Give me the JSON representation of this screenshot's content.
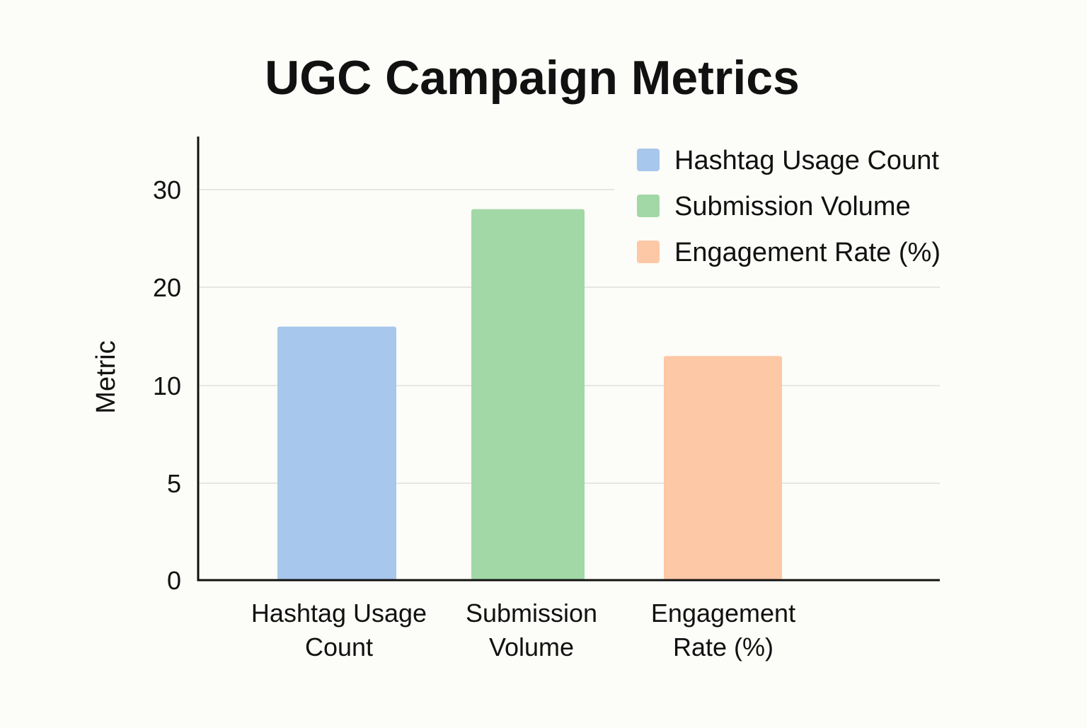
{
  "chart_data": {
    "type": "bar",
    "title": "UGC Campaign Metrics",
    "ylabel": "Metric",
    "xlabel": "",
    "categories": [
      "Hashtag Usage Count",
      "Submission Volume",
      "Engagement Rate (%)"
    ],
    "category_label_lines": [
      [
        "Hashtag Usage",
        "Count"
      ],
      [
        "Submission",
        "Volume"
      ],
      [
        "Engagement",
        "Rate (%)"
      ]
    ],
    "values": [
      16,
      28,
      13
    ],
    "y_ticks": [
      {
        "value": 0,
        "label": "0"
      },
      {
        "value": 5,
        "label": "5"
      },
      {
        "value": 10,
        "label": "10"
      },
      {
        "value": 20,
        "label": "20"
      },
      {
        "value": 30,
        "label": "30"
      }
    ],
    "ylim": [
      0,
      30
    ],
    "grid": true,
    "legend_position": "top-right",
    "legend": [
      {
        "label": "Hashtag Usage Count",
        "color": "#a7c7ec"
      },
      {
        "label": "Submission Volume",
        "color": "#a2d8a6"
      },
      {
        "label": "Engagement Rate (%)",
        "color": "#fdc8a5"
      }
    ],
    "colors": [
      "#a7c7ec",
      "#a2d8a6",
      "#fdc8a5"
    ]
  }
}
